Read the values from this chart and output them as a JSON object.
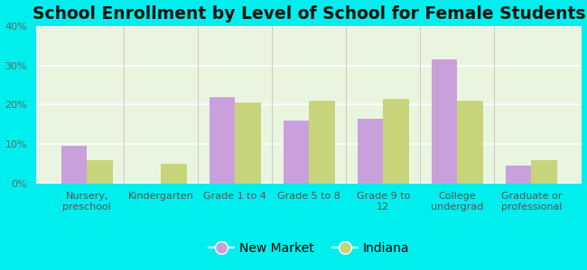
{
  "title": "School Enrollment by Level of School for Female Students",
  "categories": [
    "Nursery,\npreschool",
    "Kindergarten",
    "Grade 1 to 4",
    "Grade 5 to 8",
    "Grade 9 to\n12",
    "College\nundergrad",
    "Graduate or\nprofessional"
  ],
  "new_market": [
    9.5,
    0,
    22,
    16,
    16.5,
    31.5,
    4.5
  ],
  "indiana": [
    6,
    5,
    20.5,
    21,
    21.5,
    21,
    6
  ],
  "color_new_market": "#c9a0dc",
  "color_indiana": "#c8d47a",
  "background_outer": "#00EEEE",
  "background_plot": "#eaf5e0",
  "ylim_max": 40,
  "yticks": [
    0,
    10,
    20,
    30,
    40
  ],
  "legend_new_market": "New Market",
  "legend_indiana": "Indiana",
  "title_fontsize": 13.5,
  "tick_fontsize": 8,
  "legend_fontsize": 10,
  "bar_width": 0.35
}
